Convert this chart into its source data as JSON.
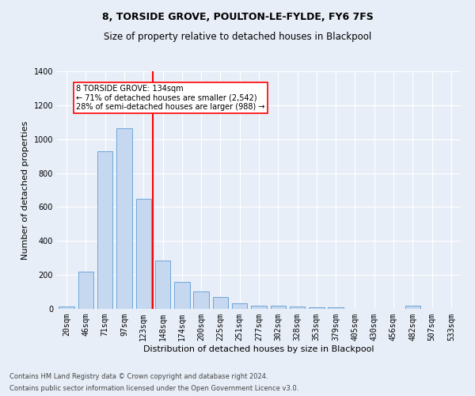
{
  "title": "8, TORSIDE GROVE, POULTON-LE-FYLDE, FY6 7FS",
  "subtitle": "Size of property relative to detached houses in Blackpool",
  "xlabel": "Distribution of detached houses by size in Blackpool",
  "ylabel": "Number of detached properties",
  "categories": [
    "20sqm",
    "46sqm",
    "71sqm",
    "97sqm",
    "123sqm",
    "148sqm",
    "174sqm",
    "200sqm",
    "225sqm",
    "251sqm",
    "277sqm",
    "302sqm",
    "328sqm",
    "353sqm",
    "379sqm",
    "405sqm",
    "430sqm",
    "456sqm",
    "482sqm",
    "507sqm",
    "533sqm"
  ],
  "values": [
    15,
    220,
    930,
    1065,
    650,
    285,
    160,
    105,
    68,
    35,
    20,
    20,
    13,
    10,
    10,
    0,
    0,
    0,
    18,
    0,
    0
  ],
  "bar_color": "#c5d8f0",
  "bar_edge_color": "#5b9bd5",
  "vline_color": "red",
  "annotation_text": "8 TORSIDE GROVE: 134sqm\n← 71% of detached houses are smaller (2,542)\n28% of semi-detached houses are larger (988) →",
  "annotation_box_color": "white",
  "annotation_box_edge": "red",
  "ylim": [
    0,
    1400
  ],
  "yticks": [
    0,
    200,
    400,
    600,
    800,
    1000,
    1200,
    1400
  ],
  "footnote1": "Contains HM Land Registry data © Crown copyright and database right 2024.",
  "footnote2": "Contains public sector information licensed under the Open Government Licence v3.0.",
  "background_color": "#e8eef8",
  "plot_bg_color": "#e8eef8",
  "title_fontsize": 9,
  "subtitle_fontsize": 8.5,
  "label_fontsize": 8,
  "tick_fontsize": 7,
  "footnote_fontsize": 6
}
